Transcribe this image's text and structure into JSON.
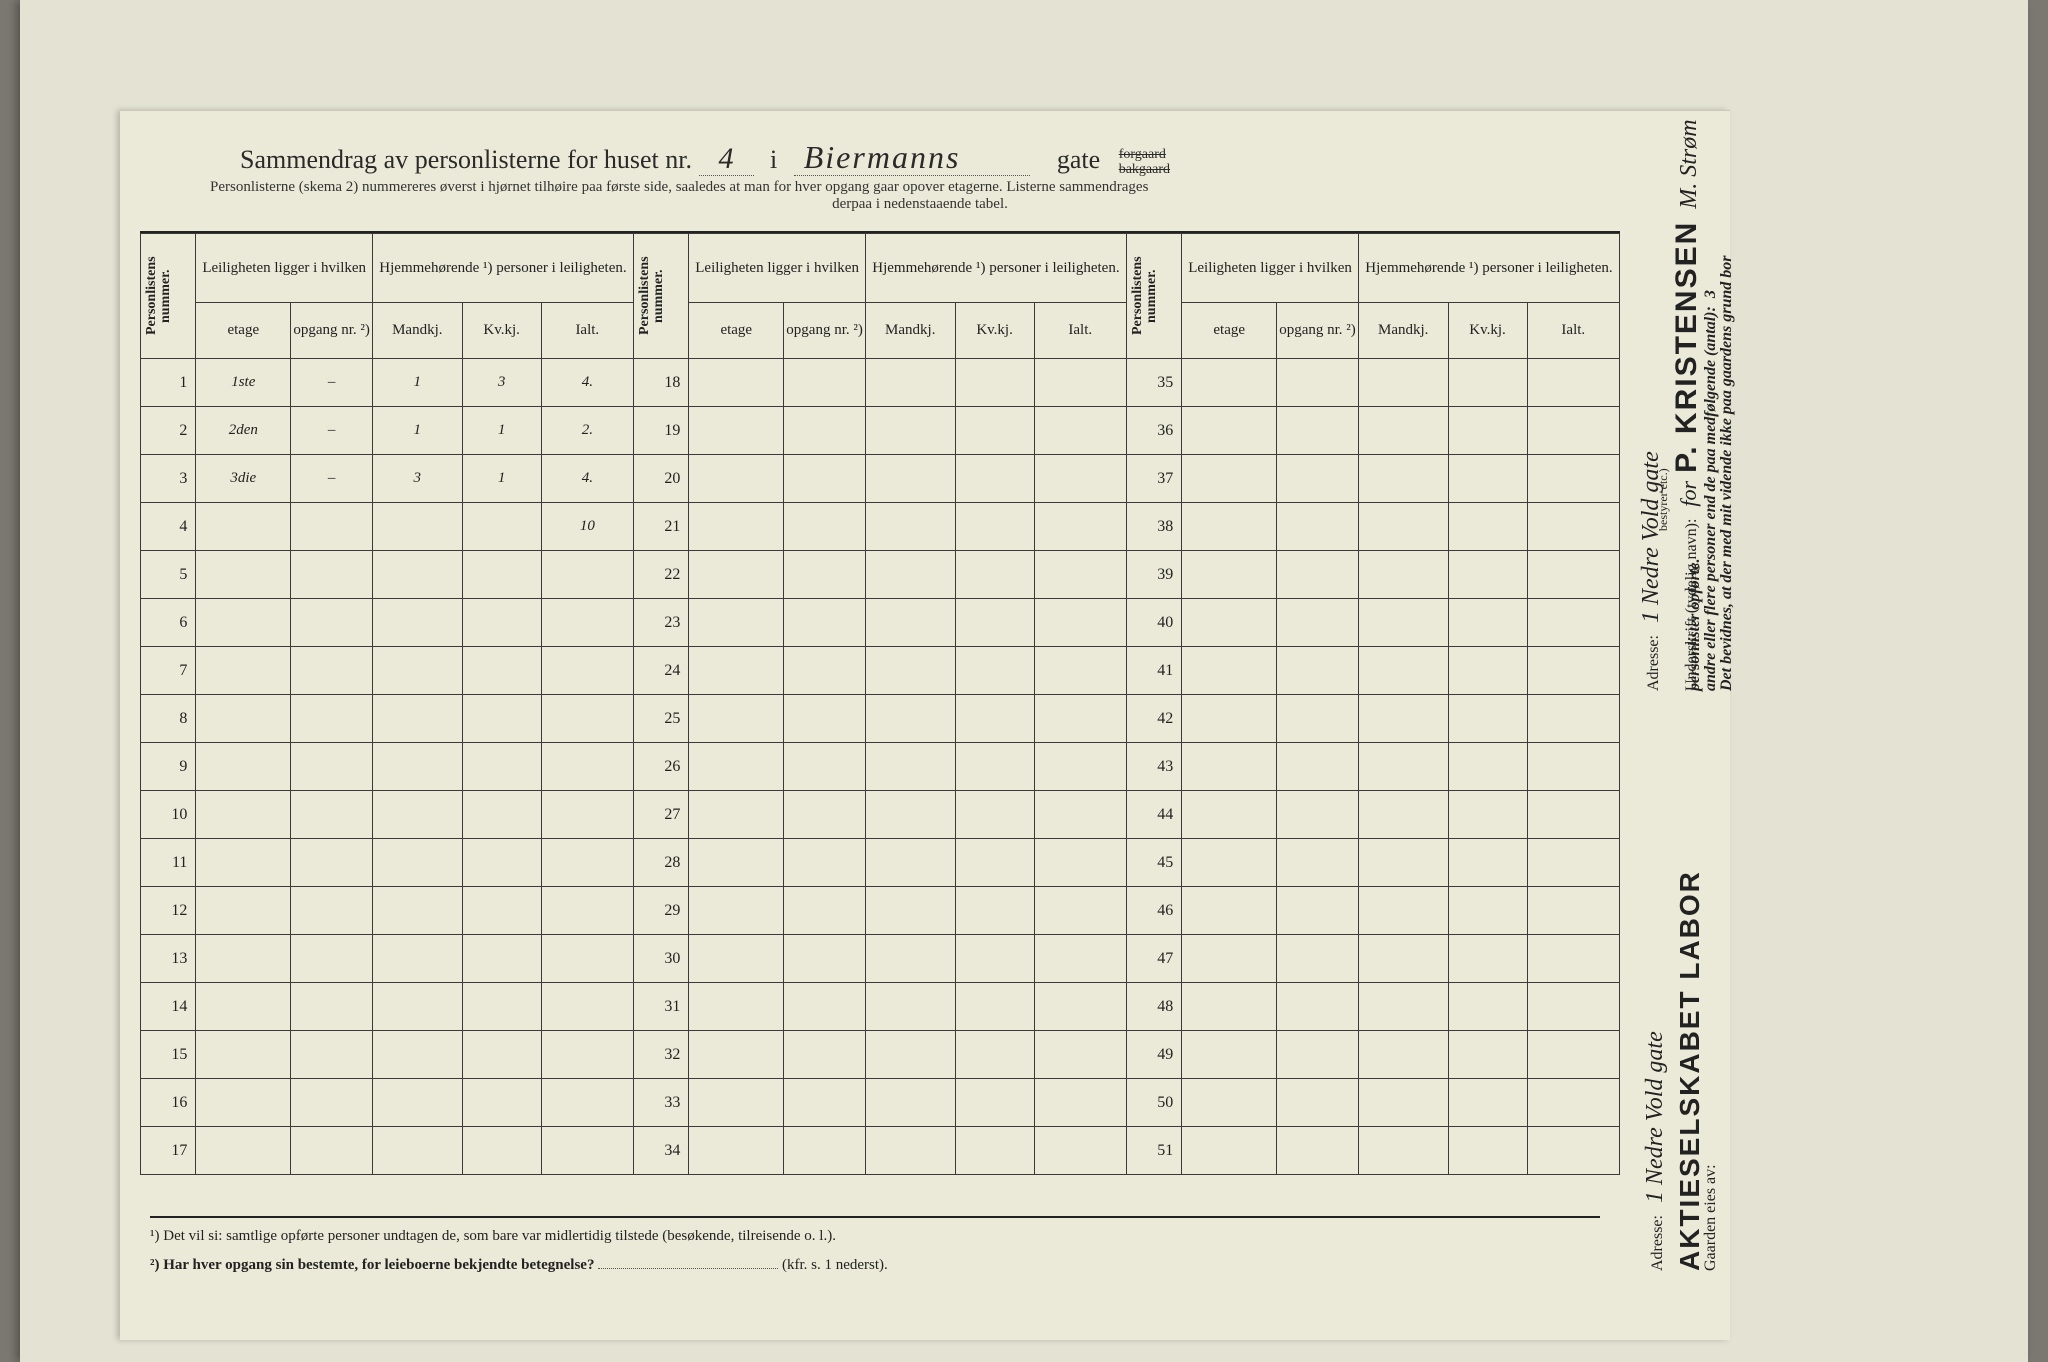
{
  "title": {
    "main": "Sammendrag av personlisterne for huset nr.",
    "house_nr": "4",
    "i": "i",
    "street": "Biermanns",
    "gate": "gate",
    "forgaard": "forgaard",
    "bakgaard": "bakgaard"
  },
  "subtitle": {
    "line1": "Personlisterne (skema 2) nummereres øverst i hjørnet tilhøire paa første side, saaledes at man for hver opgang gaar opover etagerne.  Listerne sammendrages",
    "line2": "derpaa i nedenstaaende tabel."
  },
  "headers": {
    "personlistens_nummer": "Personlistens nummer.",
    "leiligheten": "Leiligheten ligger i hvilken",
    "hjemmehorende": "Hjemmehørende ¹) personer i leiligheten.",
    "etage": "etage",
    "opgang": "opgang nr. ²)",
    "mandkj": "Mandkj.",
    "kvkj": "Kv.kj.",
    "ialt": "Ialt."
  },
  "rows_a": [
    {
      "n": "1",
      "etage": "1ste",
      "opgang": "–",
      "m": "1",
      "k": "3",
      "i": "4."
    },
    {
      "n": "2",
      "etage": "2den",
      "opgang": "–",
      "m": "1",
      "k": "1",
      "i": "2."
    },
    {
      "n": "3",
      "etage": "3die",
      "opgang": "–",
      "m": "3",
      "k": "1",
      "i": "4."
    },
    {
      "n": "4",
      "etage": "",
      "opgang": "",
      "m": "",
      "k": "",
      "i": "10"
    },
    {
      "n": "5",
      "etage": "",
      "opgang": "",
      "m": "",
      "k": "",
      "i": ""
    },
    {
      "n": "6",
      "etage": "",
      "opgang": "",
      "m": "",
      "k": "",
      "i": ""
    },
    {
      "n": "7",
      "etage": "",
      "opgang": "",
      "m": "",
      "k": "",
      "i": ""
    },
    {
      "n": "8",
      "etage": "",
      "opgang": "",
      "m": "",
      "k": "",
      "i": ""
    },
    {
      "n": "9",
      "etage": "",
      "opgang": "",
      "m": "",
      "k": "",
      "i": ""
    },
    {
      "n": "10",
      "etage": "",
      "opgang": "",
      "m": "",
      "k": "",
      "i": ""
    },
    {
      "n": "11",
      "etage": "",
      "opgang": "",
      "m": "",
      "k": "",
      "i": ""
    },
    {
      "n": "12",
      "etage": "",
      "opgang": "",
      "m": "",
      "k": "",
      "i": ""
    },
    {
      "n": "13",
      "etage": "",
      "opgang": "",
      "m": "",
      "k": "",
      "i": ""
    },
    {
      "n": "14",
      "etage": "",
      "opgang": "",
      "m": "",
      "k": "",
      "i": ""
    },
    {
      "n": "15",
      "etage": "",
      "opgang": "",
      "m": "",
      "k": "",
      "i": ""
    },
    {
      "n": "16",
      "etage": "",
      "opgang": "",
      "m": "",
      "k": "",
      "i": ""
    },
    {
      "n": "17",
      "etage": "",
      "opgang": "",
      "m": "",
      "k": "",
      "i": ""
    }
  ],
  "rows_b": [
    {
      "n": "18"
    },
    {
      "n": "19"
    },
    {
      "n": "20"
    },
    {
      "n": "21"
    },
    {
      "n": "22"
    },
    {
      "n": "23"
    },
    {
      "n": "24"
    },
    {
      "n": "25"
    },
    {
      "n": "26"
    },
    {
      "n": "27"
    },
    {
      "n": "28"
    },
    {
      "n": "29"
    },
    {
      "n": "30"
    },
    {
      "n": "31"
    },
    {
      "n": "32"
    },
    {
      "n": "33"
    },
    {
      "n": "34"
    }
  ],
  "rows_c": [
    {
      "n": "35"
    },
    {
      "n": "36"
    },
    {
      "n": "37"
    },
    {
      "n": "38"
    },
    {
      "n": "39"
    },
    {
      "n": "40"
    },
    {
      "n": "41"
    },
    {
      "n": "42"
    },
    {
      "n": "43"
    },
    {
      "n": "44"
    },
    {
      "n": "45"
    },
    {
      "n": "46"
    },
    {
      "n": "47"
    },
    {
      "n": "48"
    },
    {
      "n": "49"
    },
    {
      "n": "50"
    },
    {
      "n": "51"
    }
  ],
  "footnotes": {
    "fn1": "¹)  Det vil si: samtlige opførte personer undtagen de, som bare var midlertidig tilstede (besøkende, tilreisende o. l.).",
    "fn2a": "²)  Har hver opgang sin bestemte, for leieboerne bekjendte betegnelse?",
    "fn2b": "(kfr. s. 1 nederst)."
  },
  "sidebar": {
    "bevidnes_line": "Det bevidnes, at der med mit vidende ikke paa gaardens grund bor",
    "andre_line": "andre eller flere personer end de paa medfølgende (antal):",
    "antal_value": "3",
    "personlister": "personlister opførte.",
    "underskrift": "Underskrift (tydelig navn):",
    "for": "for",
    "stamp_name": "P. KRISTENSEN",
    "stamp_company": "AKTIESELSKABET LABOR",
    "bestyrer": "bestyrer etc.)",
    "sign": "M. Strøm",
    "adresse_label1": "Adresse:",
    "adresse_label2": "Adresse:",
    "adresse_value": "1 Nedre Vold gate",
    "gaarden": "Gaarden eies av:"
  },
  "colors": {
    "page_bg": "#ebead8",
    "outer_bg": "#e4e3d3",
    "border": "#3a3a3a",
    "text": "#222222",
    "hw": "#1a1a1a"
  }
}
